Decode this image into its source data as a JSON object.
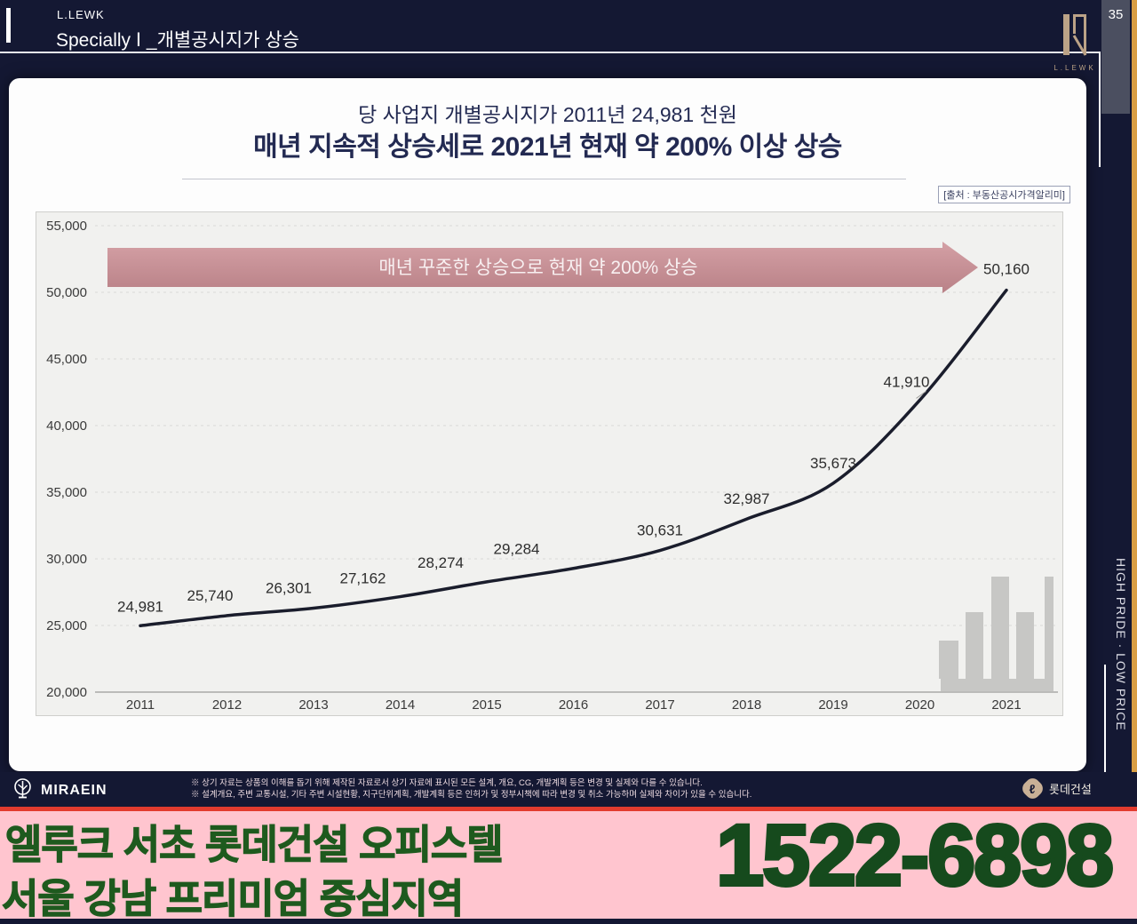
{
  "header": {
    "brand": "L.LEWK",
    "title": "Specially Ⅰ _개별공시지가 상승",
    "page_number": "35",
    "logo_text": "L.LEWK"
  },
  "sidebar": {
    "vertical_text": "HIGH PRIDE · LOW PRICE"
  },
  "card": {
    "subtitle": "당 사업지 개별공시지가 2011년 24,981 천원",
    "title": "매년 지속적 상승세로 2021년 현재 약 200% 이상 상승",
    "source": "[출처 : 부동산공시가격알리미]"
  },
  "chart_data": {
    "type": "line",
    "x_labels": [
      "2011",
      "2012",
      "2013",
      "2014",
      "2015",
      "2016",
      "2017",
      "2018",
      "2019",
      "2020",
      "2021"
    ],
    "values": [
      24981,
      25740,
      26301,
      27162,
      28274,
      29284,
      30631,
      32987,
      35673,
      41910,
      50160
    ],
    "point_labels": [
      "24,981",
      "25,740",
      "26,301",
      "27,162",
      "28,274",
      "29,284",
      "30,631",
      "32,987",
      "35,673",
      "41,910",
      "50,160"
    ],
    "ylim": [
      20000,
      55000
    ],
    "ytick_step": 5000,
    "ytick_labels": [
      "55,000",
      "50,000",
      "45,000",
      "40,000",
      "35,000",
      "30,000",
      "25,000",
      "20,000"
    ],
    "grid": "horizontal-dashed",
    "legend": "none",
    "line_color": "#1a1d2c",
    "banner": {
      "label": "매년 꾸준한 상승으로 현재 약 200% 상승",
      "color_top": "#d4a0a5",
      "color_bottom": "#b98187",
      "text_color": "#f8f0f1"
    },
    "label_offsets": {
      "dx": [
        0,
        -19,
        -28,
        -42,
        -52,
        -64,
        0,
        0,
        0,
        -15,
        0
      ],
      "dy": [
        -21,
        -22,
        -22,
        -20,
        -21,
        -21,
        -22,
        -22,
        -22,
        -20,
        -23
      ],
      "leader_index": 9
    }
  },
  "footer": {
    "brand": "MIRAEIN",
    "disclaimer_line1": "※ 상기 자료는 상품의 이해를 돕기 위해 제작된 자료로서 상기 자료에 표시된 모든 설계, 개요, CG, 개발계획 등은 변경 및 실제와 다를 수 있습니다.",
    "disclaimer_line2": "※ 설계개요, 주변 교통시설, 기타 주변 시설현황, 지구단위계획, 개발계획 등은 인허가 및 정부시책에 따라 변경 및 취소 가능하며 실제와 차이가 있을 수 있습니다.",
    "builder_glyph": "ℓ",
    "builder_label": "롯데건설"
  },
  "ad": {
    "line1": "엘루크 서초 롯데건설 오피스텔",
    "line2": "서울 강남 프리미엄 중심지역",
    "phone": "1522-6898"
  },
  "colors": {
    "background_navy": "#141833",
    "gold_strip": "#d99e44",
    "banner_rose": "#c08289",
    "ad_pink": "#ffc5cf",
    "ad_green": "#1e5a1e",
    "red_divider": "#e23b2e",
    "logo_tan": "#bca387"
  }
}
